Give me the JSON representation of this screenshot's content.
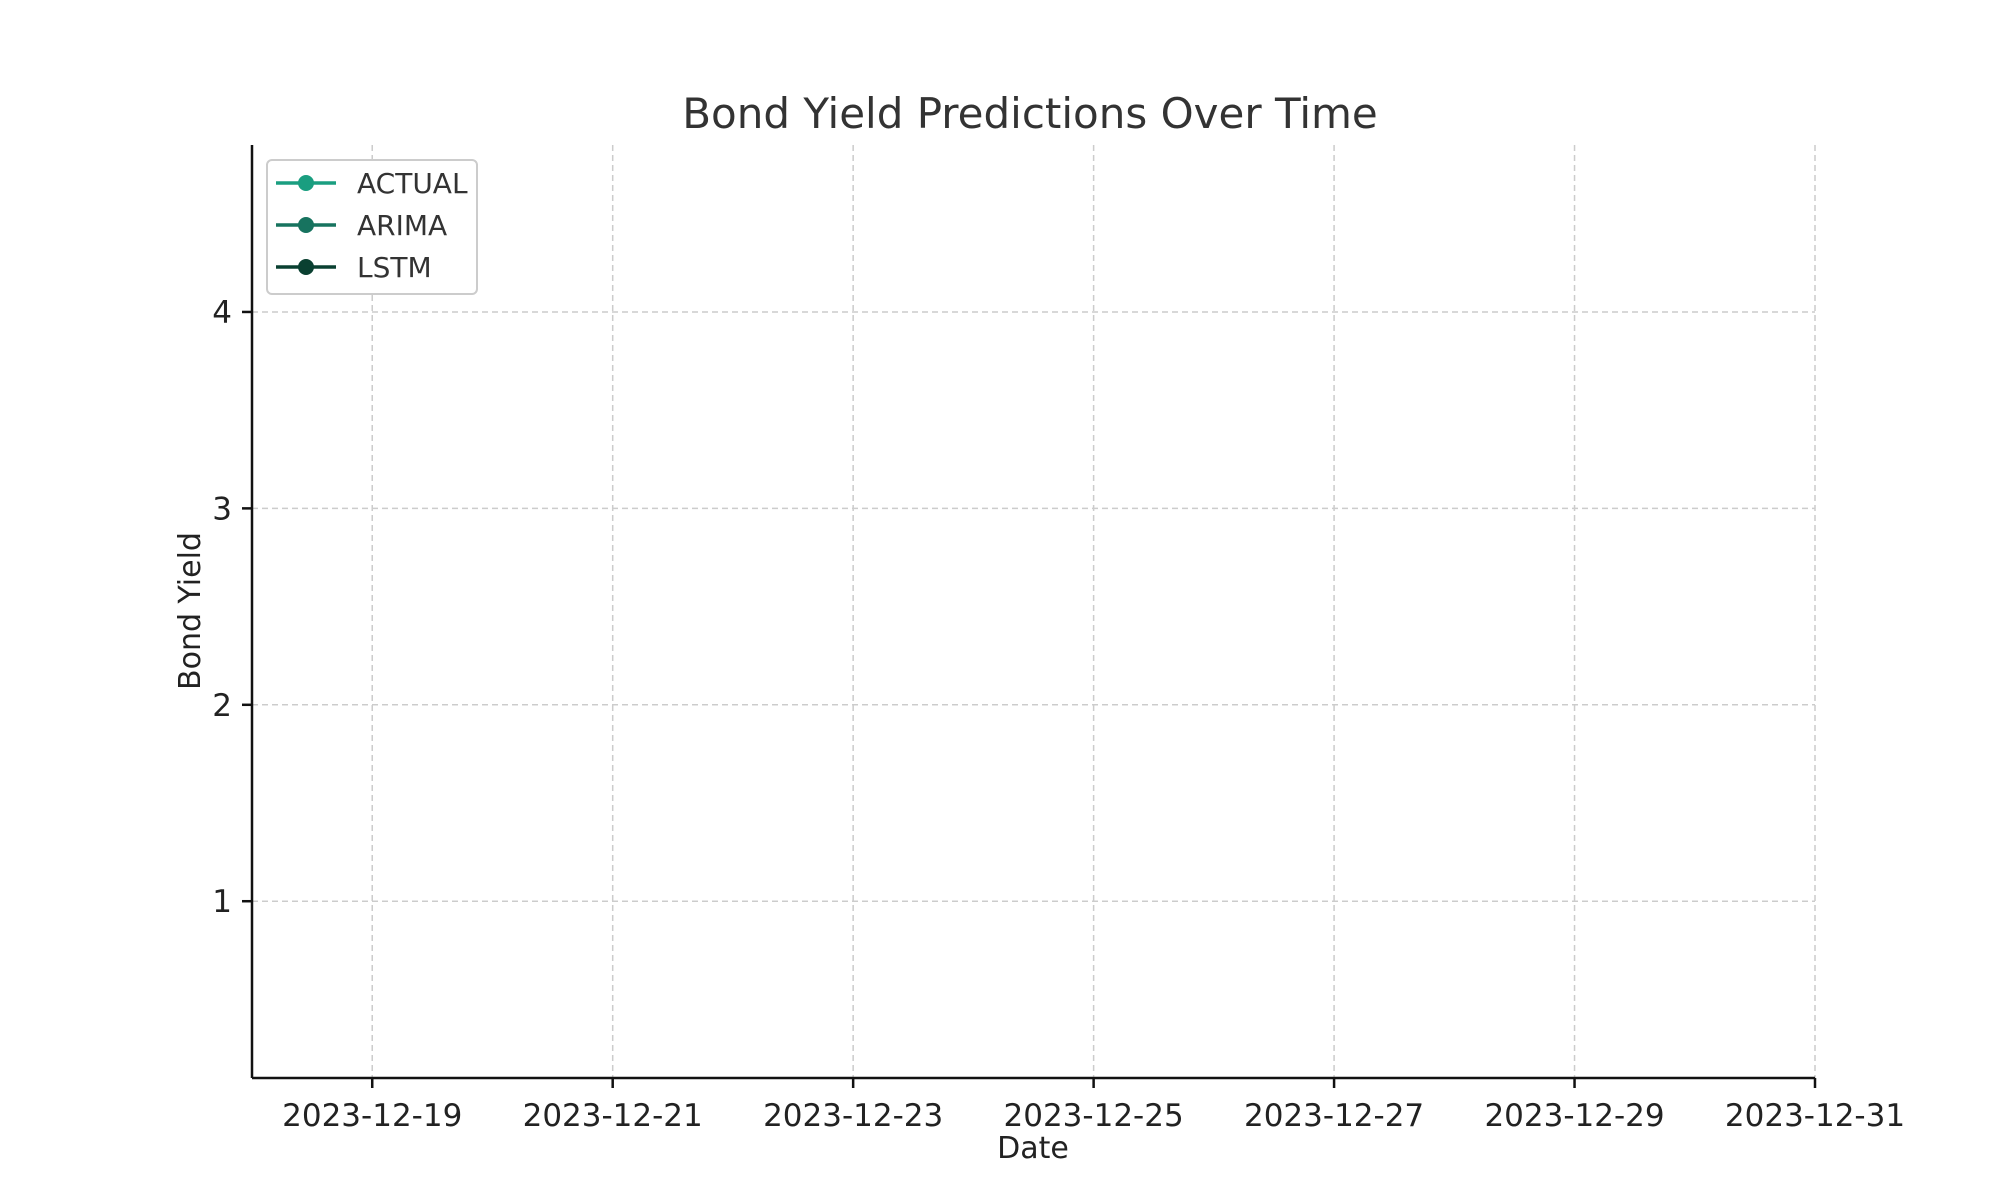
{
  "chart_data": {
    "type": "line",
    "title": "Bond Yield Predictions Over Time",
    "xlabel": "Date",
    "ylabel": "Bond Yield",
    "x_ticks": [
      "2023-12-19",
      "2023-12-21",
      "2023-12-23",
      "2023-12-25",
      "2023-12-27",
      "2023-12-29",
      "2023-12-31"
    ],
    "xlim": [
      "2023-12-18",
      "2023-12-31"
    ],
    "y_ticks": [
      1,
      2,
      3,
      4
    ],
    "ylim": [
      0.1,
      4.85
    ],
    "grid": true,
    "grid_style": "dashed",
    "legend_position": "top-left",
    "series": [
      {
        "name": "ACTUAL",
        "color": "#1a9e80",
        "x": [],
        "y": []
      },
      {
        "name": "ARIMA",
        "color": "#17735f",
        "x": [],
        "y": []
      },
      {
        "name": "LSTM",
        "color": "#0a4031",
        "x": [],
        "y": []
      }
    ]
  }
}
